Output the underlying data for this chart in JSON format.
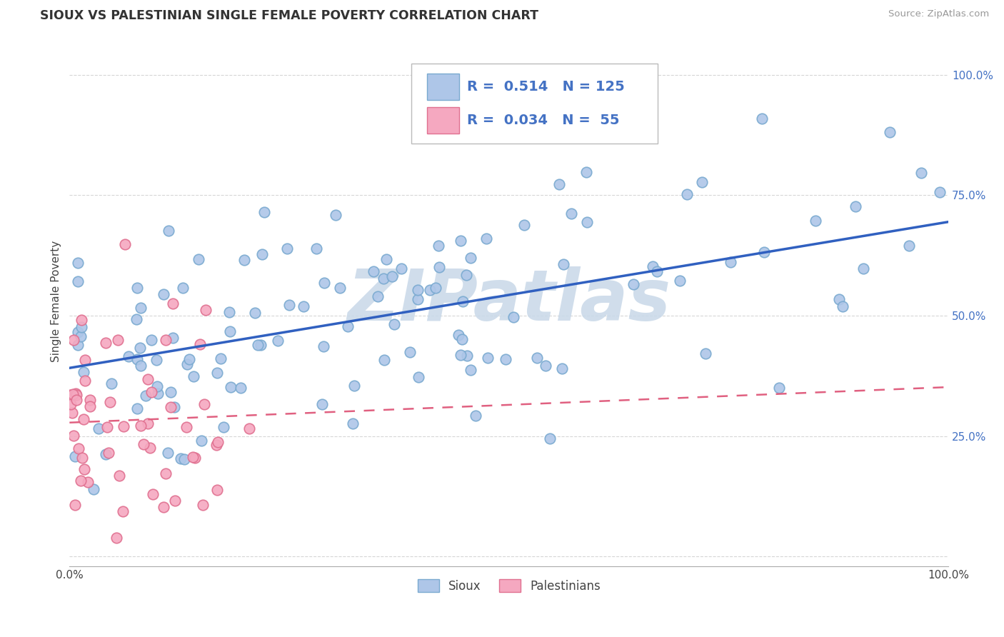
{
  "title": "SIOUX VS PALESTINIAN SINGLE FEMALE POVERTY CORRELATION CHART",
  "source": "Source: ZipAtlas.com",
  "ylabel": "Single Female Poverty",
  "xlim": [
    0,
    1
  ],
  "ylim": [
    -0.02,
    1.08
  ],
  "xticks": [
    0.0,
    1.0
  ],
  "xticklabels": [
    "0.0%",
    "100.0%"
  ],
  "yticks": [
    0.0,
    0.25,
    0.5,
    0.75,
    1.0
  ],
  "yticklabels": [
    "",
    "25.0%",
    "50.0%",
    "75.0%",
    "100.0%"
  ],
  "sioux_color": "#aec6e8",
  "sioux_edge_color": "#7aaad0",
  "palestinian_color": "#f5a8c0",
  "palestinian_edge_color": "#e07090",
  "sioux_line_color": "#3060c0",
  "palestinian_line_color": "#e06080",
  "sioux_R": 0.514,
  "sioux_N": 125,
  "palestinian_R": 0.034,
  "palestinian_N": 55,
  "watermark": "ZIPatlas",
  "watermark_color": "#c8d8e8",
  "tick_color": "#4472c4",
  "grid_color": "#cccccc"
}
